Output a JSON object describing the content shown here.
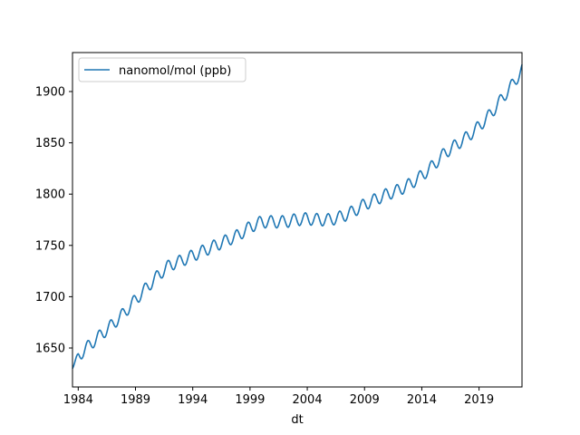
{
  "chart_data": {
    "type": "line",
    "title": "",
    "xlabel": "dt",
    "ylabel": "",
    "xlim": [
      1983.5,
      2022.75
    ],
    "ylim": [
      1612,
      1938
    ],
    "x_ticks": [
      1984,
      1989,
      1994,
      1999,
      2004,
      2009,
      2014,
      2019
    ],
    "x_tick_labels": [
      "1984",
      "1989",
      "1994",
      "1999",
      "2004",
      "2009",
      "2014",
      "2019"
    ],
    "y_ticks": [
      1650,
      1700,
      1750,
      1800,
      1850,
      1900
    ],
    "y_tick_labels": [
      "1650",
      "1700",
      "1750",
      "1800",
      "1850",
      "1900"
    ],
    "grid": false,
    "legend_position": "upper-left",
    "line_color": "#1f77b4",
    "series": [
      {
        "name": "nanomol/mol (ppb)",
        "x": [
          1983.5,
          1984.0,
          1985.0,
          1986.0,
          1987.0,
          1988.0,
          1989.0,
          1990.0,
          1991.0,
          1992.0,
          1993.0,
          1994.0,
          1995.0,
          1996.0,
          1997.0,
          1998.0,
          1999.0,
          2000.0,
          2001.0,
          2002.0,
          2003.0,
          2004.0,
          2005.0,
          2006.0,
          2007.0,
          2008.0,
          2009.0,
          2010.0,
          2011.0,
          2012.0,
          2013.0,
          2014.0,
          2015.0,
          2016.0,
          2017.0,
          2018.0,
          2019.0,
          2020.0,
          2021.0,
          2022.0,
          2022.75
        ],
        "trend": [
          1630,
          1642,
          1653,
          1663,
          1673,
          1684,
          1697,
          1709,
          1721,
          1731,
          1735,
          1740,
          1745,
          1750,
          1755,
          1760,
          1768,
          1773,
          1773,
          1773,
          1775,
          1776,
          1775,
          1775,
          1778,
          1783,
          1790,
          1795,
          1800,
          1804,
          1810,
          1818,
          1828,
          1840,
          1848,
          1856,
          1866,
          1878,
          1893,
          1908,
          1921
        ],
        "seasonal_amplitude": 6
      }
    ]
  }
}
